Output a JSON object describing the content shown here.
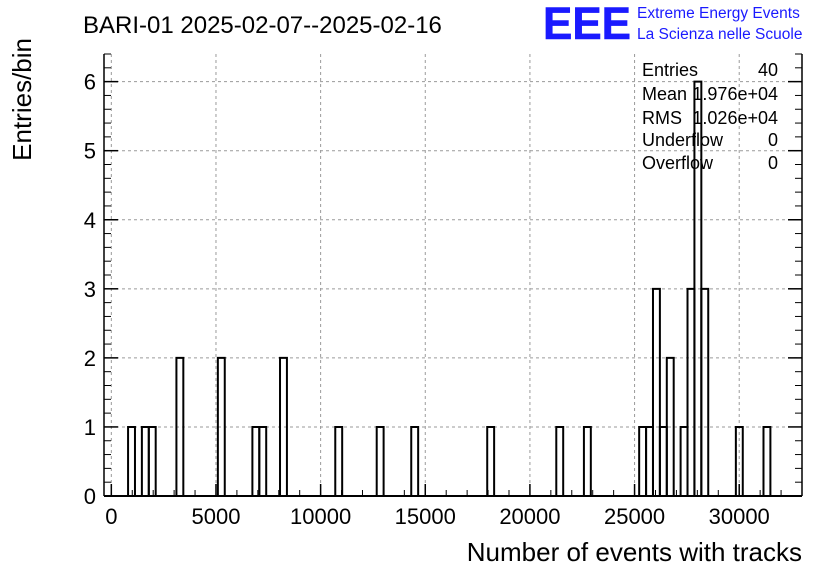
{
  "chart_data": {
    "type": "bar",
    "title": "BARI-01 2025-02-07--2025-02-16",
    "xlabel": "Number of events with tracks",
    "ylabel": "Entries/bin",
    "xlim": [
      -350,
      33000
    ],
    "ylim": [
      0,
      6.4
    ],
    "grid": true,
    "xticks": [
      0,
      5000,
      10000,
      15000,
      20000,
      25000,
      30000
    ],
    "xtick_labels": [
      "0",
      "5000",
      "10000",
      "15000",
      "20000",
      "25000",
      "30000"
    ],
    "yticks": [
      0,
      1,
      2,
      3,
      4,
      5,
      6
    ],
    "ytick_labels": [
      "0",
      "1",
      "2",
      "3",
      "4",
      "5",
      "6"
    ],
    "bin_width": 330,
    "bins": [
      {
        "x": 800,
        "value": 1
      },
      {
        "x": 1460,
        "value": 1
      },
      {
        "x": 1790,
        "value": 1
      },
      {
        "x": 3110,
        "value": 2
      },
      {
        "x": 5090,
        "value": 2
      },
      {
        "x": 6740,
        "value": 1
      },
      {
        "x": 7070,
        "value": 1
      },
      {
        "x": 8060,
        "value": 2
      },
      {
        "x": 10700,
        "value": 1
      },
      {
        "x": 12680,
        "value": 1
      },
      {
        "x": 14330,
        "value": 1
      },
      {
        "x": 17960,
        "value": 1
      },
      {
        "x": 21260,
        "value": 1
      },
      {
        "x": 22580,
        "value": 1
      },
      {
        "x": 25220,
        "value": 1
      },
      {
        "x": 25550,
        "value": 1
      },
      {
        "x": 25880,
        "value": 3
      },
      {
        "x": 26210,
        "value": 1
      },
      {
        "x": 26540,
        "value": 2
      },
      {
        "x": 27200,
        "value": 1
      },
      {
        "x": 27530,
        "value": 3
      },
      {
        "x": 27860,
        "value": 6
      },
      {
        "x": 28190,
        "value": 3
      },
      {
        "x": 29840,
        "value": 1
      },
      {
        "x": 31160,
        "value": 1
      }
    ],
    "stats": [
      {
        "label": "Entries",
        "value": "40"
      },
      {
        "label": "Mean",
        "value": "1.976e+04"
      },
      {
        "label": "RMS",
        "value": "1.026e+04"
      },
      {
        "label": "Underflow",
        "value": "0"
      },
      {
        "label": "Overflow",
        "value": "0"
      }
    ]
  },
  "logo": {
    "text": "EEE",
    "line1": "Extreme Energy Events",
    "line2": "La Scienza nelle Scuole",
    "color": "#1a1aff"
  },
  "colors": {
    "grid": "#9a9a9a",
    "histogram": "#000000",
    "logo": "#1a1aff"
  }
}
